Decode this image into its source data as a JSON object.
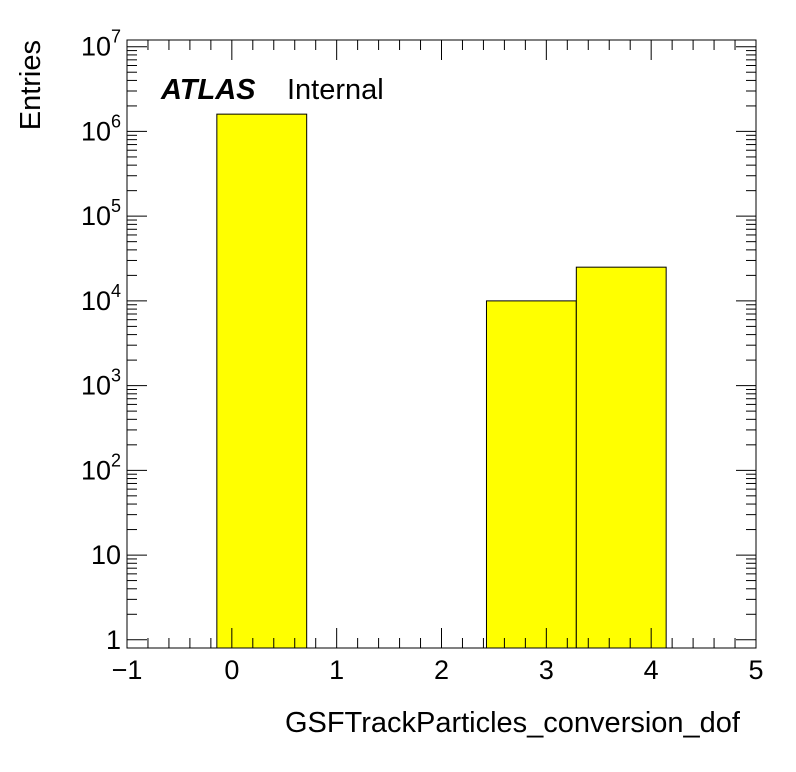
{
  "chart_data": {
    "type": "bar",
    "subtype": "histogram",
    "xlabel": "GSFTrackParticles_conversion_dof",
    "ylabel": "Entries",
    "x_scale": "linear",
    "y_scale": "log",
    "xlim": [
      -1,
      5
    ],
    "ylim": [
      0.8,
      12000000
    ],
    "x_ticks": [
      "−1",
      "0",
      "1",
      "2",
      "3",
      "4",
      "5"
    ],
    "y_ticks": [
      {
        "value": 1,
        "label": "1"
      },
      {
        "value": 10,
        "label": "10"
      },
      {
        "value": 100,
        "label": "10",
        "exponent": "2"
      },
      {
        "value": 1000,
        "label": "10",
        "exponent": "3"
      },
      {
        "value": 10000,
        "label": "10",
        "exponent": "4"
      },
      {
        "value": 100000,
        "label": "10",
        "exponent": "5"
      },
      {
        "value": 1000000,
        "label": "10",
        "exponent": "6"
      },
      {
        "value": 10000000,
        "label": "10",
        "exponent": "7"
      }
    ],
    "bins": [
      {
        "x_low": -0.143,
        "x_high": 0.714,
        "value": 1600000
      },
      {
        "x_low": 2.429,
        "x_high": 3.286,
        "value": 10000
      },
      {
        "x_low": 3.286,
        "x_high": 4.143,
        "value": 25000
      }
    ],
    "fill_color": "#ffff00",
    "edge_color": "#000000",
    "grid": false,
    "legend": "none",
    "annotation": {
      "bold": "ATLAS",
      "normal": "Internal"
    }
  }
}
